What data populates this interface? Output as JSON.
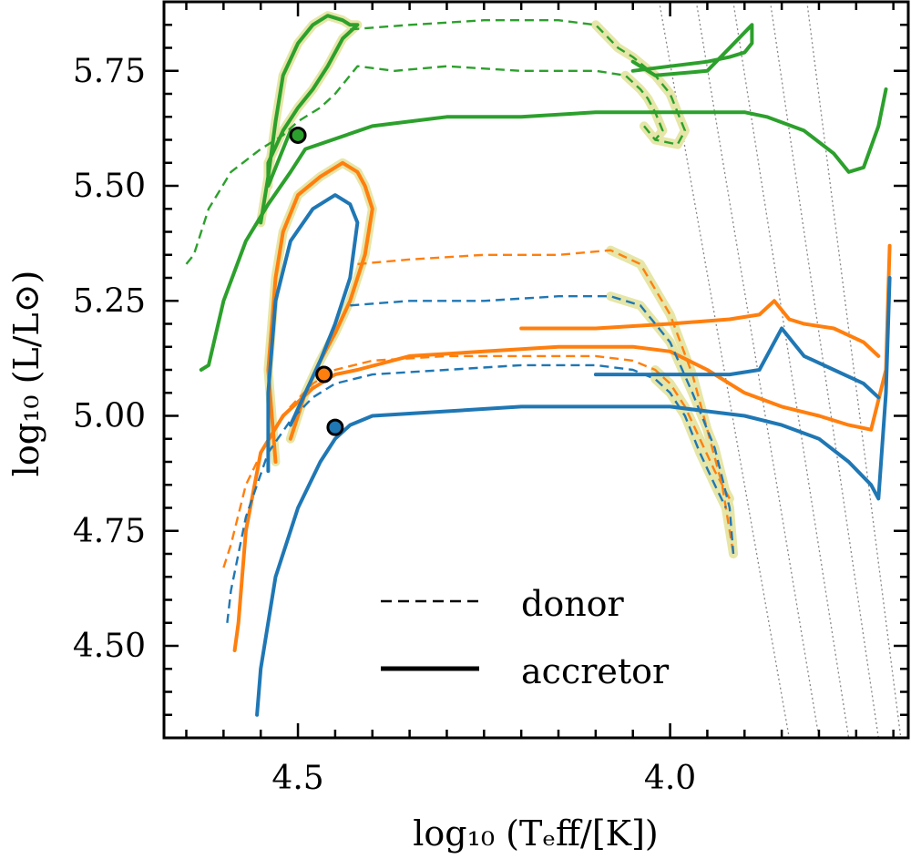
{
  "chart_data": {
    "type": "line",
    "title": "",
    "xlabel": "log₁₀ (Tₑff/[K])",
    "ylabel": "log₁₀ (L/L⊙)",
    "xlim": [
      4.68,
      3.68
    ],
    "ylim": [
      4.3,
      5.9
    ],
    "x_inverted": true,
    "x_ticks": [
      {
        "value": 4.5,
        "label": "4.5"
      },
      {
        "value": 4.0,
        "label": "4.0"
      }
    ],
    "y_ticks": [
      {
        "value": 4.5,
        "label": "4.50"
      },
      {
        "value": 4.75,
        "label": "4.75"
      },
      {
        "value": 5.0,
        "label": "5.00"
      },
      {
        "value": 5.25,
        "label": "5.25"
      },
      {
        "value": 5.5,
        "label": "5.50"
      },
      {
        "value": 5.75,
        "label": "5.75"
      }
    ],
    "legend": {
      "placement": "bottom-right",
      "entries": [
        {
          "label": "donor",
          "style": "dashed"
        },
        {
          "label": "accretor",
          "style": "solid"
        }
      ]
    },
    "colors": {
      "green": "#2ca02c",
      "orange": "#ff7f0e",
      "blue": "#1f77b4",
      "highlight": "#e6e6a8",
      "isoradius": "#888888"
    },
    "isoradius_lines": [
      {
        "x": [
          4.02,
          3.84
        ],
        "y": [
          5.95,
          4.3
        ]
      },
      {
        "x": [
          3.97,
          3.8
        ],
        "y": [
          5.95,
          4.3
        ]
      },
      {
        "x": [
          3.92,
          3.76
        ],
        "y": [
          5.95,
          4.3
        ]
      },
      {
        "x": [
          3.87,
          3.72
        ],
        "y": [
          5.95,
          4.3
        ]
      },
      {
        "x": [
          3.82,
          3.69
        ],
        "y": [
          5.95,
          4.3
        ]
      }
    ],
    "series": [
      {
        "name": "green donor",
        "color_key": "green",
        "style": "dashed",
        "x": [
          4.65,
          4.64,
          4.62,
          4.59,
          4.55,
          4.52,
          4.5,
          4.47,
          4.45,
          4.44,
          4.42,
          4.37,
          4.3,
          4.2,
          4.1,
          4.06,
          4.04,
          4.03,
          4.02,
          4.01,
          4.02,
          4.035
        ],
        "y": [
          5.33,
          5.35,
          5.45,
          5.53,
          5.58,
          5.61,
          5.64,
          5.67,
          5.7,
          5.72,
          5.76,
          5.75,
          5.76,
          5.75,
          5.75,
          5.74,
          5.71,
          5.69,
          5.66,
          5.62,
          5.6,
          5.63
        ],
        "highlight": {
          "x": [
            4.06,
            4.04,
            4.03,
            4.02,
            4.01,
            4.02,
            4.035
          ],
          "y": [
            5.74,
            5.71,
            5.69,
            5.66,
            5.62,
            5.6,
            5.63
          ]
        }
      },
      {
        "name": "green donor upper",
        "color_key": "green",
        "style": "dashed",
        "x": [
          4.43,
          4.35,
          4.25,
          4.15,
          4.1,
          4.07,
          4.05,
          4.02,
          4.0,
          3.99,
          3.98,
          3.99,
          4.02
        ],
        "y": [
          5.84,
          5.85,
          5.86,
          5.86,
          5.85,
          5.8,
          5.78,
          5.74,
          5.7,
          5.66,
          5.62,
          5.59,
          5.6
        ],
        "highlight": {
          "x": [
            4.1,
            4.07,
            4.05,
            4.02,
            4.0,
            3.99,
            3.98,
            3.99,
            4.02
          ],
          "y": [
            5.85,
            5.8,
            5.78,
            5.74,
            5.7,
            5.66,
            5.62,
            5.59,
            5.6
          ]
        }
      },
      {
        "name": "green accretor",
        "color_key": "green",
        "style": "solid",
        "x": [
          4.63,
          4.62,
          4.6,
          4.57,
          4.54,
          4.51,
          4.49,
          4.4,
          4.3,
          4.2,
          4.1,
          4.0,
          3.95,
          3.9,
          3.87,
          3.82,
          3.78,
          3.76,
          3.74,
          3.72,
          3.71
        ],
        "y": [
          5.1,
          5.11,
          5.25,
          5.38,
          5.46,
          5.53,
          5.58,
          5.63,
          5.65,
          5.65,
          5.66,
          5.66,
          5.66,
          5.66,
          5.65,
          5.62,
          5.57,
          5.53,
          5.54,
          5.63,
          5.71
        ],
        "highlight": null
      },
      {
        "name": "green accretor upper loop",
        "color_key": "green",
        "style": "solid",
        "x": [
          4.55,
          4.54,
          4.53,
          4.52,
          4.5,
          4.48,
          4.47,
          4.46,
          4.44,
          4.43,
          4.42,
          4.44,
          4.46,
          4.48,
          4.5,
          4.52,
          4.54,
          4.54,
          4.51,
          4.5
        ],
        "y": [
          5.42,
          5.52,
          5.64,
          5.74,
          5.81,
          5.85,
          5.86,
          5.87,
          5.86,
          5.85,
          5.85,
          5.82,
          5.76,
          5.71,
          5.67,
          5.62,
          5.55,
          5.5,
          5.62,
          5.6
        ],
        "highlight": {
          "x": [
            4.55,
            4.54,
            4.53,
            4.52,
            4.5,
            4.48,
            4.47,
            4.46,
            4.44,
            4.43,
            4.42,
            4.44,
            4.46,
            4.48,
            4.5,
            4.52,
            4.54,
            4.54
          ],
          "y": [
            5.42,
            5.52,
            5.64,
            5.74,
            5.81,
            5.85,
            5.86,
            5.87,
            5.86,
            5.85,
            5.85,
            5.82,
            5.76,
            5.71,
            5.67,
            5.62,
            5.55,
            5.5
          ]
        }
      },
      {
        "name": "green accretor branch",
        "color_key": "green",
        "style": "solid",
        "x": [
          4.05,
          4.0,
          3.95,
          3.92,
          3.9,
          3.89,
          3.89,
          3.95,
          4.02,
          4.05
        ],
        "y": [
          5.75,
          5.76,
          5.77,
          5.78,
          5.79,
          5.81,
          5.85,
          5.75,
          5.74,
          5.77
        ],
        "highlight": null
      },
      {
        "name": "orange donor",
        "color_key": "orange",
        "style": "dashed",
        "x": [
          4.6,
          4.59,
          4.57,
          4.54,
          4.51,
          4.48,
          4.45,
          4.4,
          4.3,
          4.2,
          4.1,
          4.05,
          4.02,
          4.0,
          3.98,
          3.96,
          3.94,
          3.92
        ],
        "y": [
          4.67,
          4.72,
          4.85,
          4.95,
          5.02,
          5.07,
          5.1,
          5.12,
          5.13,
          5.13,
          5.13,
          5.12,
          5.1,
          5.07,
          5.02,
          4.95,
          4.88,
          4.82
        ],
        "highlight": {
          "x": [
            4.02,
            4.0,
            3.98,
            3.96,
            3.94,
            3.92
          ],
          "y": [
            5.1,
            5.07,
            5.02,
            4.95,
            4.88,
            4.82
          ]
        }
      },
      {
        "name": "orange donor upper",
        "color_key": "orange",
        "style": "dashed",
        "x": [
          4.42,
          4.35,
          4.25,
          4.15,
          4.08,
          4.04,
          4.0,
          3.97,
          3.95,
          3.93,
          3.915
        ],
        "y": [
          5.33,
          5.34,
          5.35,
          5.35,
          5.36,
          5.33,
          5.22,
          5.09,
          4.97,
          4.85,
          4.7
        ],
        "highlight": {
          "x": [
            4.08,
            4.04,
            4.0,
            3.97,
            3.95,
            3.93,
            3.915
          ],
          "y": [
            5.36,
            5.33,
            5.22,
            5.09,
            4.97,
            4.85,
            4.7
          ]
        }
      },
      {
        "name": "orange accretor",
        "color_key": "orange",
        "style": "solid",
        "x": [
          4.585,
          4.58,
          4.57,
          4.55,
          4.52,
          4.48,
          4.45,
          4.42,
          4.35,
          4.25,
          4.15,
          4.05,
          4.0,
          3.95,
          3.9,
          3.85,
          3.8,
          3.76,
          3.73,
          3.71,
          3.705
        ],
        "y": [
          4.49,
          4.55,
          4.75,
          4.92,
          5.0,
          5.06,
          5.09,
          5.1,
          5.13,
          5.14,
          5.15,
          5.15,
          5.14,
          5.1,
          5.05,
          5.02,
          5.0,
          4.98,
          4.97,
          5.1,
          5.37
        ],
        "highlight": null
      },
      {
        "name": "orange accretor upper loop",
        "color_key": "orange",
        "style": "solid",
        "x": [
          4.53,
          4.54,
          4.53,
          4.52,
          4.5,
          4.47,
          4.44,
          4.42,
          4.41,
          4.4,
          4.41,
          4.43,
          4.45,
          4.47,
          4.49,
          4.51
        ],
        "y": [
          4.9,
          5.1,
          5.3,
          5.4,
          5.48,
          5.52,
          5.55,
          5.53,
          5.5,
          5.45,
          5.35,
          5.25,
          5.18,
          5.12,
          5.05,
          4.95
        ],
        "highlight": {
          "x": [
            4.53,
            4.54,
            4.53,
            4.52,
            4.5,
            4.47,
            4.44,
            4.42,
            4.41,
            4.4,
            4.41,
            4.43,
            4.45,
            4.47,
            4.49,
            4.51
          ],
          "y": [
            4.9,
            5.1,
            5.3,
            5.4,
            5.48,
            5.52,
            5.55,
            5.53,
            5.5,
            5.45,
            5.35,
            5.25,
            5.18,
            5.12,
            5.05,
            4.95
          ]
        }
      },
      {
        "name": "orange accretor branch",
        "color_key": "orange",
        "style": "solid",
        "x": [
          4.2,
          4.1,
          4.0,
          3.92,
          3.88,
          3.86,
          3.84,
          3.82,
          3.78,
          3.74,
          3.72
        ],
        "y": [
          5.19,
          5.19,
          5.2,
          5.21,
          5.22,
          5.25,
          5.21,
          5.2,
          5.19,
          5.16,
          5.13
        ],
        "highlight": null
      },
      {
        "name": "blue donor",
        "color_key": "blue",
        "style": "dashed",
        "x": [
          4.595,
          4.59,
          4.57,
          4.54,
          4.51,
          4.48,
          4.45,
          4.4,
          4.3,
          4.2,
          4.1,
          4.05,
          4.02,
          4.0,
          3.98,
          3.96,
          3.94,
          3.925
        ],
        "y": [
          4.55,
          4.62,
          4.78,
          4.92,
          4.99,
          5.04,
          5.07,
          5.09,
          5.1,
          5.11,
          5.11,
          5.1,
          5.08,
          5.05,
          5.0,
          4.92,
          4.85,
          4.8
        ],
        "highlight": {
          "x": [
            4.02,
            4.0,
            3.98,
            3.96,
            3.94,
            3.925
          ],
          "y": [
            5.08,
            5.05,
            5.0,
            4.92,
            4.85,
            4.8
          ]
        }
      },
      {
        "name": "blue donor upper",
        "color_key": "blue",
        "style": "dashed",
        "x": [
          4.43,
          4.35,
          4.25,
          4.15,
          4.08,
          4.04,
          4.0,
          3.97,
          3.94,
          3.92,
          3.915
        ],
        "y": [
          5.24,
          5.25,
          5.25,
          5.26,
          5.26,
          5.24,
          5.16,
          5.05,
          4.93,
          4.8,
          4.7
        ],
        "highlight": {
          "x": [
            4.08,
            4.04,
            4.0,
            3.97,
            3.94,
            3.92,
            3.915
          ],
          "y": [
            5.26,
            5.24,
            5.16,
            5.05,
            4.93,
            4.8,
            4.7
          ]
        }
      },
      {
        "name": "blue accretor",
        "color_key": "blue",
        "style": "solid",
        "x": [
          4.555,
          4.55,
          4.53,
          4.5,
          4.47,
          4.45,
          4.43,
          4.4,
          4.3,
          4.2,
          4.1,
          4.0,
          3.95,
          3.9,
          3.85,
          3.8,
          3.76,
          3.73,
          3.72,
          3.71,
          3.705
        ],
        "y": [
          4.35,
          4.45,
          4.65,
          4.8,
          4.9,
          4.95,
          4.98,
          5.0,
          5.01,
          5.02,
          5.02,
          5.02,
          5.01,
          5.0,
          4.98,
          4.95,
          4.9,
          4.85,
          4.82,
          5.05,
          5.3
        ],
        "highlight": null
      },
      {
        "name": "blue accretor upper loop",
        "color_key": "blue",
        "style": "solid",
        "x": [
          4.54,
          4.54,
          4.53,
          4.51,
          4.48,
          4.45,
          4.43,
          4.42,
          4.43,
          4.45,
          4.47,
          4.49,
          4.51
        ],
        "y": [
          4.88,
          5.05,
          5.25,
          5.38,
          5.45,
          5.48,
          5.46,
          5.42,
          5.3,
          5.2,
          5.12,
          5.05,
          4.98
        ],
        "highlight": null
      },
      {
        "name": "blue accretor branch",
        "color_key": "blue",
        "style": "solid",
        "x": [
          4.1,
          4.0,
          3.92,
          3.88,
          3.85,
          3.82,
          3.78,
          3.74,
          3.72
        ],
        "y": [
          5.09,
          5.09,
          5.09,
          5.1,
          5.19,
          5.13,
          5.1,
          5.07,
          5.04
        ],
        "highlight": null
      }
    ],
    "markers": [
      {
        "x": 4.5,
        "y": 5.61,
        "color_key": "green"
      },
      {
        "x": 4.465,
        "y": 5.09,
        "color_key": "orange"
      },
      {
        "x": 4.45,
        "y": 4.975,
        "color_key": "blue"
      }
    ]
  }
}
